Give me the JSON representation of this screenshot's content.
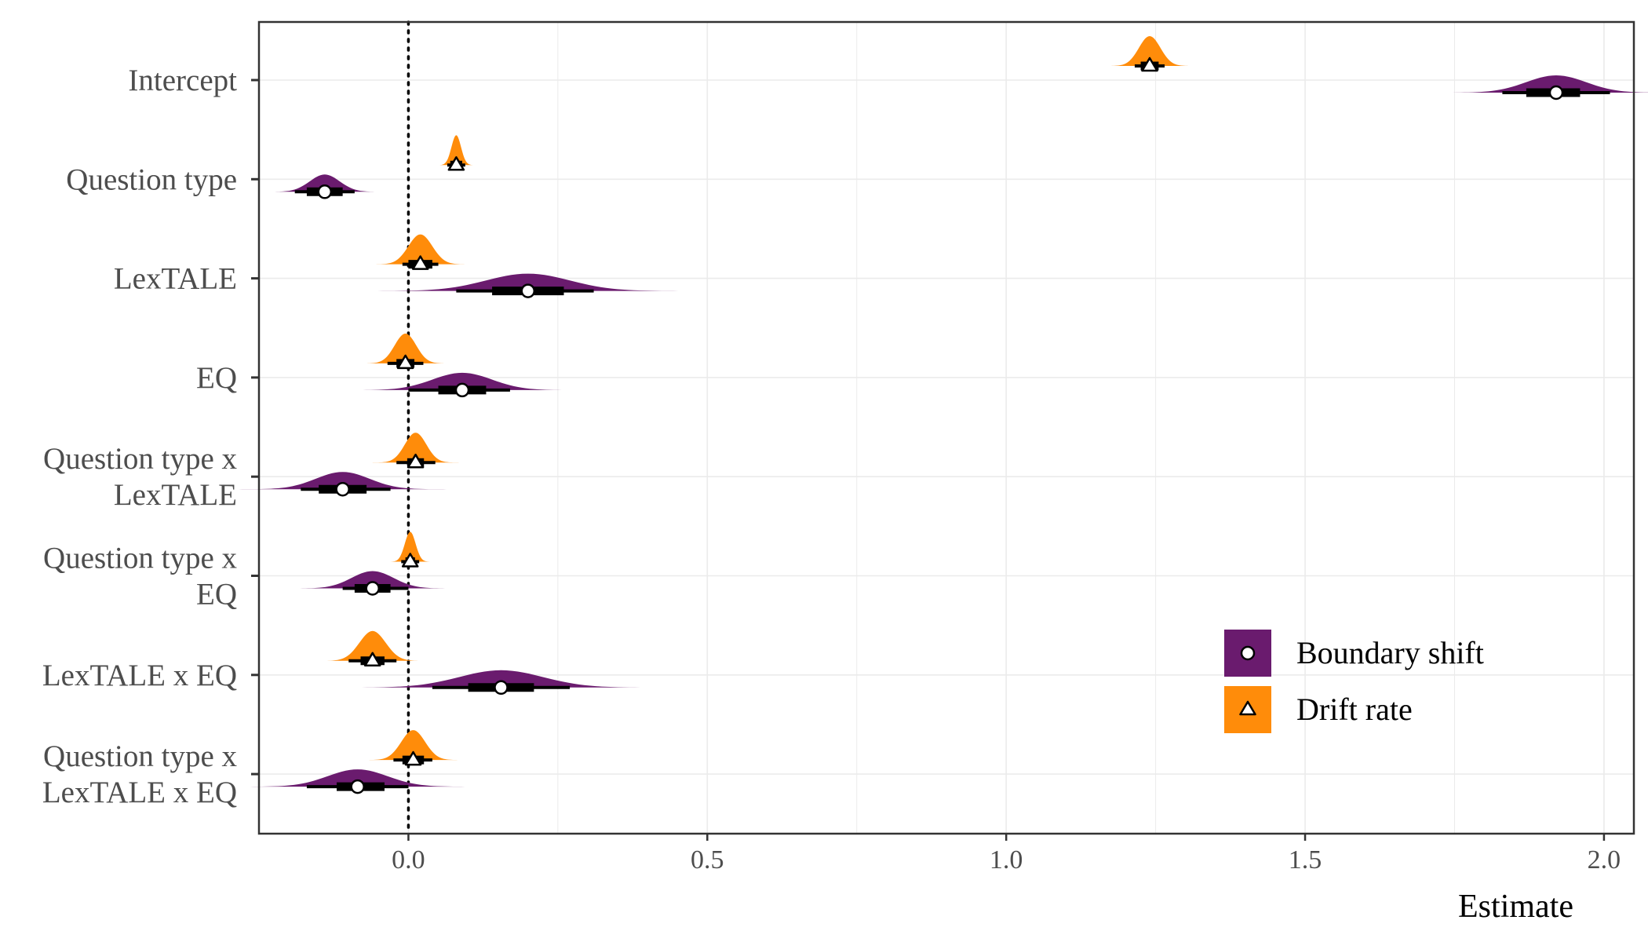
{
  "chart_data": {
    "type": "posterior-interval (halfeye)",
    "xlabel": "Estimate",
    "ylabel": "",
    "xlim": [
      -0.25,
      2.05
    ],
    "x_ticks": [
      0.0,
      0.5,
      1.0,
      1.5,
      2.0
    ],
    "x_tick_labels": [
      "0.0",
      "0.5",
      "1.0",
      "1.5",
      "2.0"
    ],
    "reference_line": {
      "x": 0,
      "style": "dotted"
    },
    "grid": true,
    "legend_position": "bottom-right, inside plot",
    "categories": [
      {
        "label": [
          "Intercept"
        ]
      },
      {
        "label": [
          "Question type"
        ]
      },
      {
        "label": [
          "LexTALE"
        ]
      },
      {
        "label": [
          "EQ"
        ]
      },
      {
        "label": [
          "Question type x",
          "LexTALE"
        ]
      },
      {
        "label": [
          "Question type x",
          "EQ"
        ]
      },
      {
        "label": [
          "LexTALE x EQ"
        ]
      },
      {
        "label": [
          "Question type x",
          "LexTALE x EQ"
        ]
      }
    ],
    "series": [
      {
        "name": "Boundary shift",
        "color": "#6a1b6e",
        "marker": "circle",
        "points": [
          {
            "estimate": 1.92,
            "ci66": [
              1.87,
              1.96
            ],
            "ci95": [
              1.83,
              2.01
            ],
            "spread": 0.05
          },
          {
            "estimate": -0.14,
            "ci66": [
              -0.17,
              -0.11
            ],
            "ci95": [
              -0.19,
              -0.09
            ],
            "spread": 0.025
          },
          {
            "estimate": 0.2,
            "ci66": [
              0.14,
              0.26
            ],
            "ci95": [
              0.08,
              0.31
            ],
            "spread": 0.07
          },
          {
            "estimate": 0.09,
            "ci66": [
              0.05,
              0.13
            ],
            "ci95": [
              0.0,
              0.17
            ],
            "spread": 0.05
          },
          {
            "estimate": -0.11,
            "ci66": [
              -0.15,
              -0.07
            ],
            "ci95": [
              -0.18,
              -0.03
            ],
            "spread": 0.045
          },
          {
            "estimate": -0.06,
            "ci66": [
              -0.09,
              -0.03
            ],
            "ci95": [
              -0.11,
              0.0
            ],
            "spread": 0.035
          },
          {
            "estimate": 0.155,
            "ci66": [
              0.1,
              0.21
            ],
            "ci95": [
              0.04,
              0.27
            ],
            "spread": 0.07
          },
          {
            "estimate": -0.085,
            "ci66": [
              -0.12,
              -0.04
            ],
            "ci95": [
              -0.17,
              0.0
            ],
            "spread": 0.05
          }
        ]
      },
      {
        "name": "Drift rate",
        "color": "#ff8c0a",
        "marker": "triangle",
        "points": [
          {
            "estimate": 1.24,
            "ci66": [
              1.225,
              1.255
            ],
            "ci95": [
              1.215,
              1.265
            ],
            "spread": 0.018
          },
          {
            "estimate": 0.08,
            "ci66": [
              0.07,
              0.09
            ],
            "ci95": [
              0.065,
              0.095
            ],
            "spread": 0.008
          },
          {
            "estimate": 0.02,
            "ci66": [
              0.0,
              0.04
            ],
            "ci95": [
              -0.01,
              0.05
            ],
            "spread": 0.02
          },
          {
            "estimate": -0.005,
            "ci66": [
              -0.02,
              0.01
            ],
            "ci95": [
              -0.035,
              0.025
            ],
            "spread": 0.018
          },
          {
            "estimate": 0.012,
            "ci66": [
              -0.002,
              0.026
            ],
            "ci95": [
              -0.02,
              0.045
            ],
            "spread": 0.018
          },
          {
            "estimate": 0.003,
            "ci66": [
              -0.005,
              0.011
            ],
            "ci95": [
              -0.012,
              0.018
            ],
            "spread": 0.009
          },
          {
            "estimate": -0.06,
            "ci66": [
              -0.08,
              -0.04
            ],
            "ci95": [
              -0.1,
              -0.02
            ],
            "spread": 0.022
          },
          {
            "estimate": 0.008,
            "ci66": [
              -0.01,
              0.026
            ],
            "ci95": [
              -0.025,
              0.04
            ],
            "spread": 0.02
          }
        ]
      }
    ]
  }
}
